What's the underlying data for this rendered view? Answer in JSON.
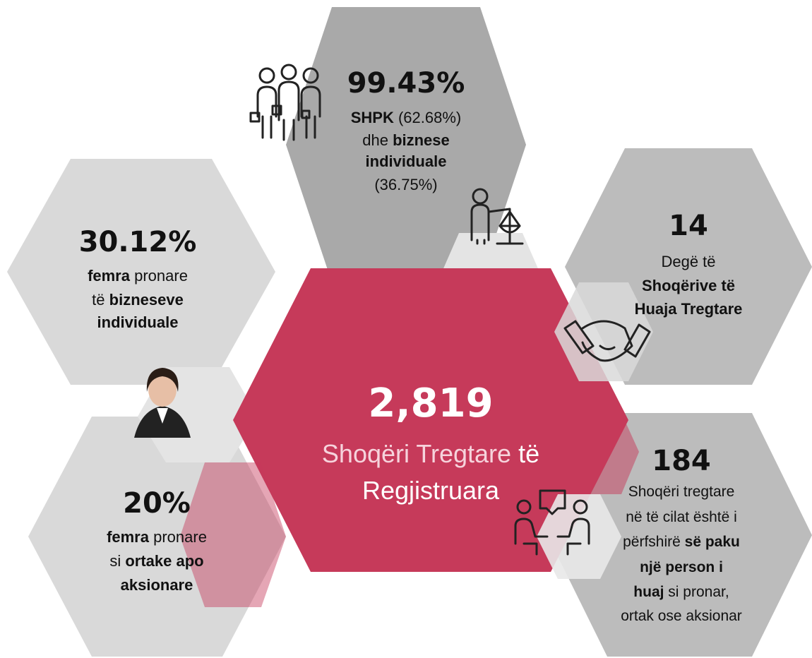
{
  "hexagons": [
    {
      "headline": "99.43%",
      "lines": [
        [
          {
            "text": "SHPK",
            "bold": true
          },
          {
            "text": " (62.68%)"
          }
        ],
        [
          {
            "text": "dhe "
          },
          {
            "text": "biznese",
            "bold": true
          }
        ],
        [
          {
            "text": "individuale",
            "bold": true
          }
        ],
        [
          {
            "text": "(36.75%)"
          }
        ]
      ]
    },
    {
      "headline": "30.12%",
      "lines": [
        [
          {
            "text": "femra",
            "bold": true
          },
          {
            "text": " pronare"
          }
        ],
        [
          {
            "text": "të "
          },
          {
            "text": "bizneseve",
            "bold": true
          }
        ],
        [
          {
            "text": "individuale",
            "bold": true
          }
        ]
      ]
    },
    {
      "headline": "20%",
      "lines": [
        [
          {
            "text": "femra",
            "bold": true
          },
          {
            "text": " pronare"
          }
        ],
        [
          {
            "text": "si "
          },
          {
            "text": "ortake apo",
            "bold": true
          }
        ],
        [
          {
            "text": "aksionare",
            "bold": true
          }
        ]
      ]
    },
    {
      "headline": "14",
      "lines": [
        [
          {
            "text": "Degë të"
          }
        ],
        [
          {
            "text": "Shoqërive të",
            "bold": true
          }
        ],
        [
          {
            "text": "Huaja Tregtare",
            "bold": true
          }
        ]
      ]
    },
    {
      "headline": "184",
      "lines": [
        [
          {
            "text": "Shoqëri tregtare"
          }
        ],
        [
          {
            "text": "në të cilat është i"
          }
        ],
        [
          {
            "text": "përfshirë "
          },
          {
            "text": "së paku",
            "bold": true
          }
        ],
        [
          {
            "text": "një person i",
            "bold": true
          }
        ],
        [
          {
            "text": "huaj",
            "bold": true
          },
          {
            "text": " si pronar,"
          }
        ],
        [
          {
            "text": "ortak ose aksionar"
          }
        ]
      ]
    }
  ],
  "center": {
    "headline": "2,819",
    "lines": [
      [
        {
          "text": "Shoqëri Tregtare",
          "color": "#f6d3dc"
        },
        {
          "text": " të"
        }
      ],
      [
        {
          "text": "Regjistruara"
        }
      ]
    ]
  }
}
